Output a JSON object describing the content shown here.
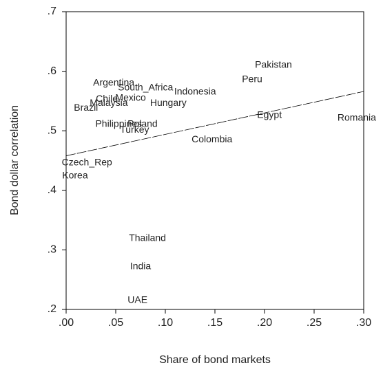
{
  "chart_data": {
    "type": "scatter",
    "xlabel": "Share of bond markets",
    "ylabel": "Bond dollar correlation",
    "labels": [
      "Pakistan",
      "Peru",
      "Argentina",
      "South_Africa",
      "Indonesia",
      "Chile",
      "Mexico",
      "Malaysia",
      "Hungary",
      "Brazil",
      "Egypt",
      "Romania",
      "Philippines",
      "Poland",
      "Turkey",
      "Colombia",
      "Czech_Rep",
      "Korea",
      "Thailand",
      "India",
      "UAE"
    ],
    "x": [
      0.209,
      0.1875,
      0.048,
      0.08,
      0.13,
      0.041,
      0.065,
      0.043,
      0.103,
      0.02,
      0.205,
      0.293,
      0.053,
      0.077,
      0.069,
      0.147,
      0.021,
      0.009,
      0.082,
      0.075,
      0.072
    ],
    "values": [
      0.61,
      0.586,
      0.58,
      0.572,
      0.565,
      0.553,
      0.555,
      0.546,
      0.546,
      0.538,
      0.526,
      0.521,
      0.511,
      0.511,
      0.501,
      0.485,
      0.446,
      0.424,
      0.319,
      0.272,
      0.215
    ],
    "fit_line": {
      "x": [
        0.0,
        0.3
      ],
      "values": [
        0.458,
        0.566
      ]
    },
    "xlim": [
      0.0,
      0.3
    ],
    "ylim": [
      0.2,
      0.7
    ],
    "xticks": [
      {
        "value": 0.0,
        "label": ".00"
      },
      {
        "value": 0.05,
        "label": ".05"
      },
      {
        "value": 0.1,
        "label": ".10"
      },
      {
        "value": 0.15,
        "label": ".15"
      },
      {
        "value": 0.2,
        "label": ".20"
      },
      {
        "value": 0.25,
        "label": ".25"
      },
      {
        "value": 0.3,
        "label": ".30"
      }
    ],
    "yticks": [
      {
        "value": 0.2,
        "label": ".2"
      },
      {
        "value": 0.3,
        "label": ".3"
      },
      {
        "value": 0.4,
        "label": ".4"
      },
      {
        "value": 0.5,
        "label": ".5"
      },
      {
        "value": 0.6,
        "label": ".6"
      },
      {
        "value": 0.7,
        "label": ".7"
      }
    ],
    "color": "#333333"
  }
}
